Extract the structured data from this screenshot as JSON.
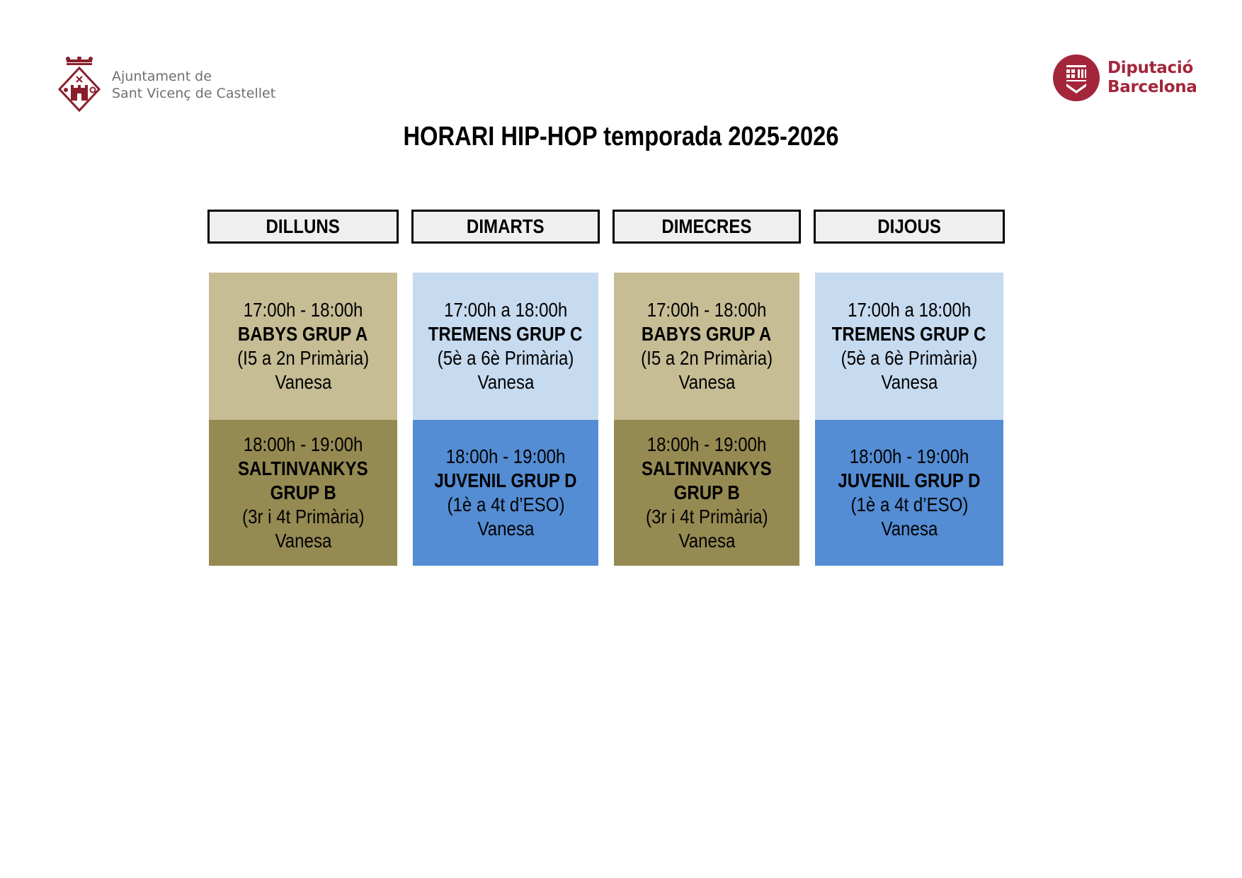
{
  "header": {
    "left_org": {
      "line1": "Ajuntament de",
      "line2": "Sant Vicenç de Castellet"
    },
    "right_org": {
      "line1": "Diputació",
      "line2": "Barcelona"
    }
  },
  "title": "HORARI HIP-HOP temporada 2025-2026",
  "colors": {
    "tan": "#c6bd95",
    "olive": "#958a52",
    "light_blue": "#c6daf0",
    "blue": "#548dd4",
    "brand_red": "#a3263b"
  },
  "days": [
    {
      "label": "DILLUNS",
      "slots": [
        {
          "lines": [
            "17:00h - 18:00h",
            "BABYS GRUP A",
            "(I5 a 2n Primària)",
            "Vanesa"
          ]
        },
        {
          "lines": [
            "18:00h - 19:00h",
            "SALTINVANKYS",
            "GRUP B",
            "(3r i 4t Primària)",
            "Vanesa"
          ]
        }
      ]
    },
    {
      "label": "DIMARTS",
      "slots": [
        {
          "lines": [
            "17:00h a 18:00h",
            "TREMENS GRUP C",
            "(5è a 6è Primària)",
            "Vanesa"
          ]
        },
        {
          "lines": [
            "18:00h - 19:00h",
            "JUVENIL GRUP D",
            "(1è a 4t d’ESO)",
            "Vanesa"
          ]
        }
      ]
    },
    {
      "label": "DIMECRES",
      "slots": [
        {
          "lines": [
            "17:00h - 18:00h",
            "BABYS GRUP A",
            "(I5 a 2n Primària)",
            "Vanesa"
          ]
        },
        {
          "lines": [
            "18:00h - 19:00h",
            "SALTINVANKYS",
            "GRUP B",
            "(3r i 4t Primària)",
            "Vanesa"
          ]
        }
      ]
    },
    {
      "label": "DIJOUS",
      "slots": [
        {
          "lines": [
            "17:00h a 18:00h",
            "TREMENS GRUP C",
            "(5è a 6è Primària)",
            "Vanesa"
          ]
        },
        {
          "lines": [
            "18:00h - 19:00h",
            "JUVENIL GRUP D",
            "(1è a 4t d’ESO)",
            "Vanesa"
          ]
        }
      ]
    }
  ]
}
